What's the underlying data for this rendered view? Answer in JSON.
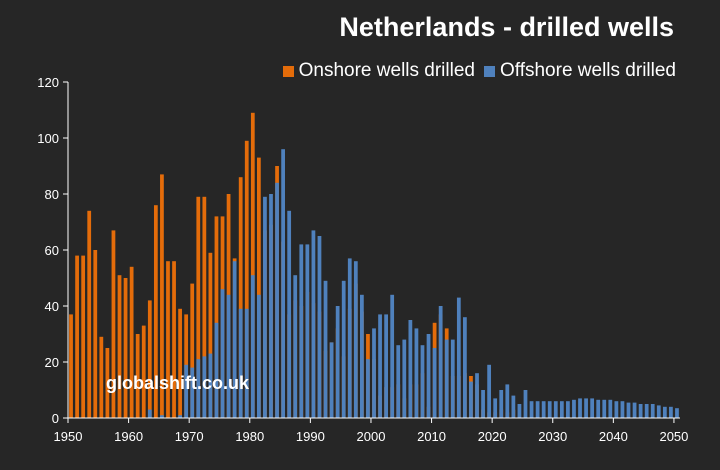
{
  "chart_data": {
    "type": "bar",
    "title": "Netherlands - drilled wells",
    "xlabel": "",
    "ylabel": "",
    "ylim": [
      0,
      120
    ],
    "xlim": [
      1950,
      2051
    ],
    "x_ticks": [
      1950,
      1960,
      1970,
      1980,
      1990,
      2000,
      2010,
      2020,
      2030,
      2040,
      2050
    ],
    "y_ticks": [
      0,
      20,
      40,
      60,
      80,
      100,
      120
    ],
    "grid": false,
    "legend_position": "top-right",
    "series": [
      {
        "name": "Onshore wells drilled",
        "color": "#e46c0a",
        "x": [
          1950,
          1951,
          1952,
          1953,
          1954,
          1955,
          1956,
          1957,
          1958,
          1959,
          1960,
          1961,
          1962,
          1963,
          1964,
          1965,
          1966,
          1967,
          1968,
          1969,
          1970,
          1971,
          1972,
          1973,
          1974,
          1975,
          1976,
          1977,
          1978,
          1979,
          1980,
          1981,
          1982,
          1983,
          1984,
          1985,
          1986,
          1987,
          1988,
          1989,
          1990,
          1991,
          1992,
          1993,
          1994,
          1995,
          1996,
          1997,
          1998,
          1999,
          2000,
          2001,
          2002,
          2003,
          2004,
          2005,
          2006,
          2007,
          2008,
          2009,
          2010,
          2011,
          2012,
          2013,
          2014,
          2015,
          2016,
          2017,
          2018,
          2019,
          2020,
          2021,
          2022,
          2023
        ],
        "values": [
          37,
          58,
          58,
          74,
          60,
          29,
          25,
          67,
          51,
          50,
          54,
          30,
          33,
          42,
          76,
          87,
          56,
          56,
          39,
          37,
          48,
          79,
          79,
          59,
          72,
          72,
          80,
          57,
          86,
          99,
          109,
          93,
          67,
          69,
          90,
          63,
          37,
          42,
          40,
          45,
          41,
          38,
          24,
          27,
          32,
          22,
          39,
          48,
          38,
          30,
          21,
          8,
          11,
          11,
          12,
          7,
          12,
          12,
          16,
          4,
          34,
          37,
          32,
          15,
          15,
          16,
          15,
          12,
          3,
          2,
          2,
          3,
          2,
          3
        ]
      },
      {
        "name": "Offshore wells drilled",
        "color": "#4f81bd",
        "x": [
          1963,
          1965,
          1968,
          1969,
          1970,
          1971,
          1972,
          1973,
          1974,
          1975,
          1976,
          1977,
          1978,
          1979,
          1980,
          1981,
          1982,
          1983,
          1984,
          1985,
          1986,
          1987,
          1988,
          1989,
          1990,
          1991,
          1992,
          1993,
          1994,
          1995,
          1996,
          1997,
          1998,
          1999,
          2000,
          2001,
          2002,
          2003,
          2004,
          2005,
          2006,
          2007,
          2008,
          2009,
          2010,
          2011,
          2012,
          2013,
          2014,
          2015,
          2016,
          2017,
          2018,
          2019,
          2020,
          2021,
          2022,
          2023,
          2024,
          2025,
          2026,
          2027,
          2028,
          2029,
          2030,
          2031,
          2032,
          2033,
          2034,
          2035,
          2036,
          2037,
          2038,
          2039,
          2040,
          2041,
          2042,
          2043,
          2044,
          2045,
          2046,
          2047,
          2048,
          2049,
          2050
        ],
        "values": [
          3,
          1,
          1,
          19,
          18,
          21,
          22,
          23,
          34,
          46,
          44,
          56,
          39,
          39,
          51,
          44,
          79,
          80,
          84,
          96,
          74,
          51,
          62,
          62,
          67,
          65,
          49,
          27,
          40,
          49,
          57,
          56,
          44,
          21,
          32,
          37,
          37,
          44,
          26,
          28,
          35,
          32,
          26,
          30,
          25,
          40,
          28,
          28,
          43,
          36,
          13,
          16,
          10,
          19,
          7,
          10,
          12,
          8,
          5,
          10,
          6,
          6,
          6,
          6,
          6,
          6,
          6,
          6.5,
          7,
          7,
          7,
          6.5,
          6.5,
          6.5,
          6,
          6,
          5.5,
          5.5,
          5,
          5,
          5,
          4.5,
          4,
          4,
          3.5
        ]
      }
    ],
    "watermark": "globalshift.co.uk"
  }
}
